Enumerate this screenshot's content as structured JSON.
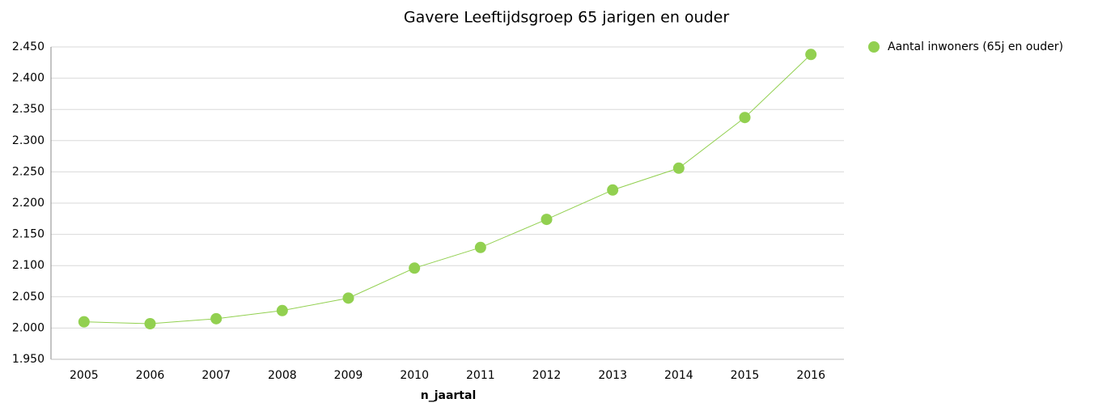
{
  "chart_data": {
    "type": "line",
    "title": "Gavere  Leeftijdsgroep 65 jarigen en ouder",
    "x_label": "n_jaartal",
    "categories": [
      "2005",
      "2006",
      "2007",
      "2008",
      "2009",
      "2010",
      "2011",
      "2012",
      "2013",
      "2014",
      "2015",
      "2016"
    ],
    "series": [
      {
        "name": "Aantal inwoners (65j en ouder)",
        "color": "#92d050",
        "values": [
          2010,
          2007,
          2015,
          2028,
          2048,
          2096,
          2129,
          2174,
          2221,
          2256,
          2337,
          2438
        ]
      }
    ],
    "ylim": [
      1950,
      2450
    ],
    "yticks": [
      {
        "value": 1950,
        "label": "1.950"
      },
      {
        "value": 2000,
        "label": "2.000"
      },
      {
        "value": 2050,
        "label": "2.050"
      },
      {
        "value": 2100,
        "label": "2.100"
      },
      {
        "value": 2150,
        "label": "2.150"
      },
      {
        "value": 2200,
        "label": "2.200"
      },
      {
        "value": 2250,
        "label": "2.250"
      },
      {
        "value": 2300,
        "label": "2.300"
      },
      {
        "value": 2350,
        "label": "2.350"
      },
      {
        "value": 2400,
        "label": "2.400"
      },
      {
        "value": 2450,
        "label": "2.450"
      }
    ],
    "grid": true,
    "legend": "right"
  }
}
